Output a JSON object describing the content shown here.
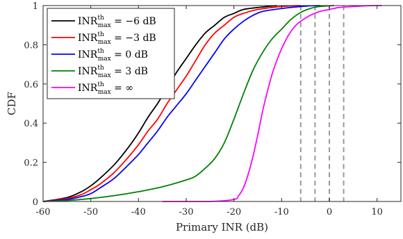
{
  "chart_data": {
    "type": "line",
    "xlabel": "Primary INR (dB)",
    "ylabel": "CDF",
    "xlim": [
      -60,
      15
    ],
    "ylim": [
      0,
      1
    ],
    "xticks": [
      -60,
      -50,
      -40,
      -30,
      -20,
      -10,
      0,
      10
    ],
    "yticks": [
      0,
      0.2,
      0.4,
      0.6,
      0.8,
      1
    ],
    "xtick_labels": [
      "-60",
      "-50",
      "-40",
      "-30",
      "-20",
      "-10",
      "0",
      "10"
    ],
    "ytick_labels": [
      "0",
      "0.2",
      "0.4",
      "0.6",
      "0.8",
      "1"
    ],
    "grid": false,
    "legend_position": "top-left",
    "series": [
      {
        "name": "INR_max^th = −6 dB",
        "legend": {
          "base": "INR",
          "sup": "th",
          "sub": "max",
          "value": " = −6 dB"
        },
        "color": "#000000",
        "points": [
          [
            -60,
            0.0
          ],
          [
            -55,
            0.02
          ],
          [
            -52,
            0.05
          ],
          [
            -50,
            0.08
          ],
          [
            -48,
            0.12
          ],
          [
            -45,
            0.19
          ],
          [
            -42,
            0.28
          ],
          [
            -40,
            0.35
          ],
          [
            -38,
            0.43
          ],
          [
            -36,
            0.5
          ],
          [
            -34,
            0.58
          ],
          [
            -32,
            0.66
          ],
          [
            -30,
            0.73
          ],
          [
            -28,
            0.8
          ],
          [
            -26,
            0.86
          ],
          [
            -24,
            0.9
          ],
          [
            -22,
            0.94
          ],
          [
            -20,
            0.96
          ],
          [
            -18,
            0.98
          ],
          [
            -15,
            0.99
          ],
          [
            -11,
            1.0
          ]
        ]
      },
      {
        "name": "INR_max^th = −3 dB",
        "legend": {
          "base": "INR",
          "sup": "th",
          "sub": "max",
          "value": " = −3 dB"
        },
        "color": "#ff0000",
        "points": [
          [
            -60,
            0.0
          ],
          [
            -55,
            0.015
          ],
          [
            -52,
            0.035
          ],
          [
            -50,
            0.06
          ],
          [
            -48,
            0.09
          ],
          [
            -45,
            0.15
          ],
          [
            -42,
            0.23
          ],
          [
            -40,
            0.29
          ],
          [
            -38,
            0.36
          ],
          [
            -36,
            0.42
          ],
          [
            -34,
            0.5
          ],
          [
            -32,
            0.57
          ],
          [
            -30,
            0.64
          ],
          [
            -28,
            0.72
          ],
          [
            -26,
            0.8
          ],
          [
            -24,
            0.86
          ],
          [
            -22,
            0.9
          ],
          [
            -20,
            0.94
          ],
          [
            -18,
            0.96
          ],
          [
            -15,
            0.98
          ],
          [
            -10,
            0.995
          ],
          [
            -6,
            1.0
          ]
        ]
      },
      {
        "name": "INR_max^th = 0 dB",
        "legend": {
          "base": "INR",
          "sup": "th",
          "sub": "max",
          "value": " = 0 dB"
        },
        "color": "#0000ff",
        "points": [
          [
            -60,
            0.0
          ],
          [
            -55,
            0.01
          ],
          [
            -52,
            0.025
          ],
          [
            -50,
            0.04
          ],
          [
            -48,
            0.07
          ],
          [
            -45,
            0.12
          ],
          [
            -42,
            0.19
          ],
          [
            -40,
            0.24
          ],
          [
            -38,
            0.3
          ],
          [
            -36,
            0.36
          ],
          [
            -34,
            0.43
          ],
          [
            -32,
            0.49
          ],
          [
            -30,
            0.55
          ],
          [
            -28,
            0.62
          ],
          [
            -26,
            0.69
          ],
          [
            -24,
            0.76
          ],
          [
            -22,
            0.83
          ],
          [
            -20,
            0.88
          ],
          [
            -18,
            0.92
          ],
          [
            -16,
            0.95
          ],
          [
            -14,
            0.97
          ],
          [
            -10,
            0.985
          ],
          [
            -5,
            0.997
          ],
          [
            -2,
            1.0
          ]
        ]
      },
      {
        "name": "INR_max^th = 3 dB",
        "legend": {
          "base": "INR",
          "sup": "th",
          "sub": "max",
          "value": " = 3 dB"
        },
        "color": "#008000",
        "points": [
          [
            -60,
            0.0
          ],
          [
            -55,
            0.005
          ],
          [
            -50,
            0.015
          ],
          [
            -45,
            0.03
          ],
          [
            -40,
            0.05
          ],
          [
            -35,
            0.075
          ],
          [
            -30,
            0.11
          ],
          [
            -28,
            0.13
          ],
          [
            -26,
            0.17
          ],
          [
            -24,
            0.22
          ],
          [
            -22,
            0.3
          ],
          [
            -20,
            0.42
          ],
          [
            -18,
            0.55
          ],
          [
            -16,
            0.67
          ],
          [
            -14,
            0.76
          ],
          [
            -12,
            0.83
          ],
          [
            -10,
            0.88
          ],
          [
            -8,
            0.93
          ],
          [
            -6,
            0.965
          ],
          [
            -4,
            0.985
          ],
          [
            -2,
            0.995
          ],
          [
            1,
            1.0
          ]
        ]
      },
      {
        "name": "INR_max^th = ∞",
        "legend": {
          "base": "INR",
          "sup": "th",
          "sub": "max",
          "value": " = ∞"
        },
        "color": "#ff00ff",
        "points": [
          [
            -35,
            0.0
          ],
          [
            -25,
            0.0
          ],
          [
            -20,
            0.01
          ],
          [
            -19,
            0.03
          ],
          [
            -18,
            0.07
          ],
          [
            -17,
            0.14
          ],
          [
            -16,
            0.23
          ],
          [
            -15,
            0.34
          ],
          [
            -14,
            0.46
          ],
          [
            -13,
            0.56
          ],
          [
            -12,
            0.65
          ],
          [
            -11,
            0.72
          ],
          [
            -10,
            0.78
          ],
          [
            -9,
            0.83
          ],
          [
            -8,
            0.87
          ],
          [
            -7,
            0.9
          ],
          [
            -6,
            0.92
          ],
          [
            -4,
            0.95
          ],
          [
            -2,
            0.97
          ],
          [
            0,
            0.98
          ],
          [
            2,
            0.99
          ],
          [
            5,
            0.995
          ],
          [
            8,
            0.999
          ],
          [
            11,
            1.0
          ]
        ]
      }
    ],
    "reference_lines": {
      "orientation": "vertical",
      "style": "dashed",
      "color": "#999999",
      "x": [
        -6,
        -3,
        0,
        3
      ]
    }
  }
}
